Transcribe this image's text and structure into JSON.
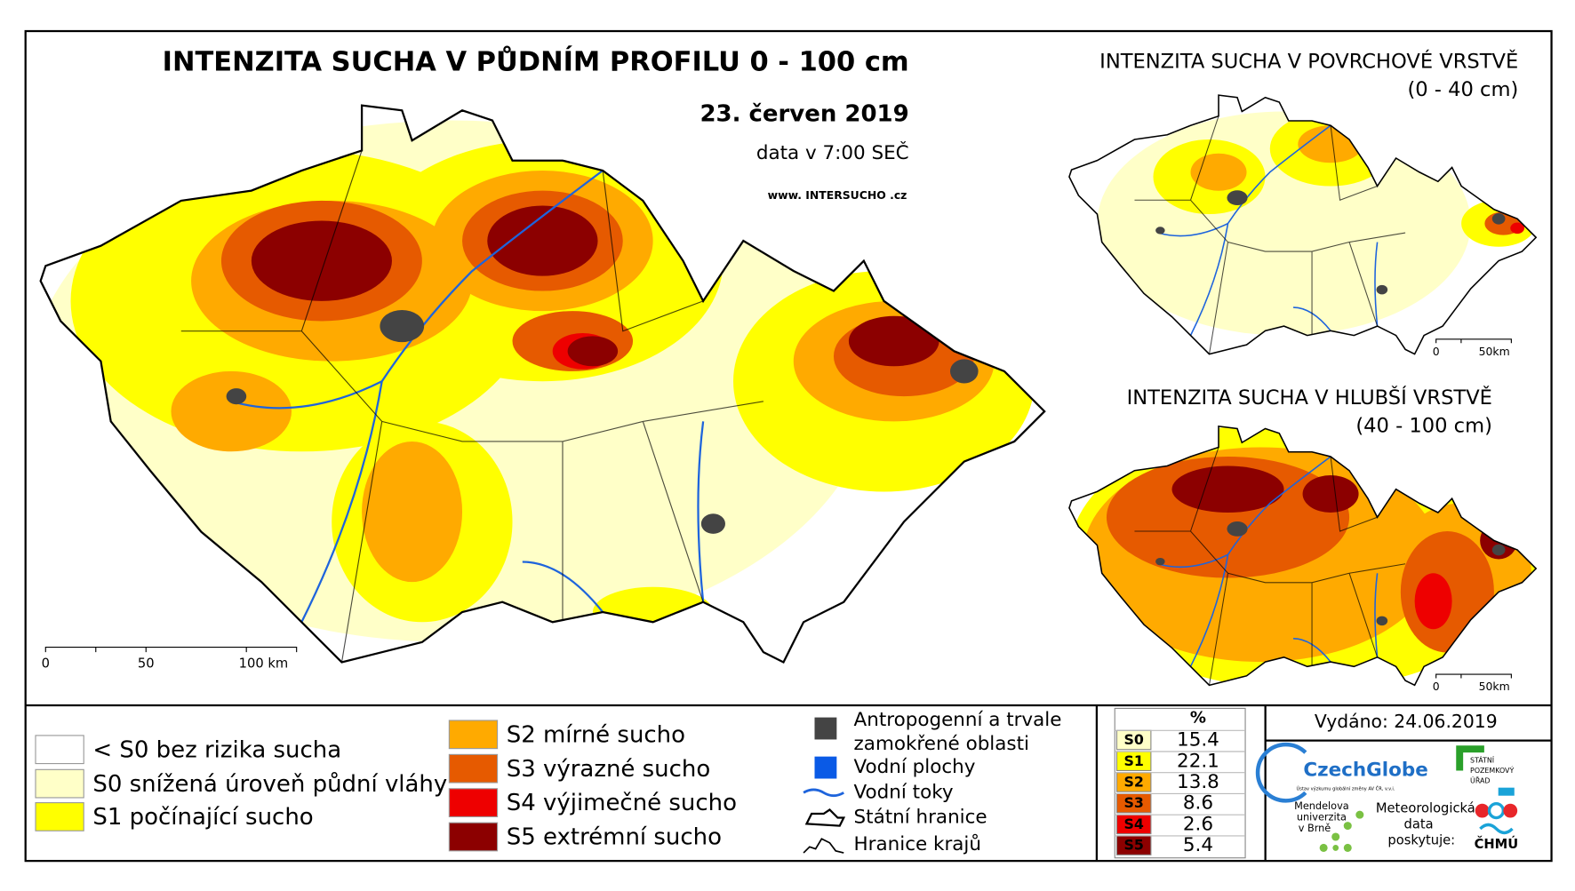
{
  "main_map": {
    "title": "INTENZITA SUCHA V PŮDNÍM PROFILU 0 - 100 cm",
    "date": "23. červen 2019",
    "data_time": "data v 7:00 SEČ",
    "website": "www. INTERSUCHO .cz",
    "scale": [
      "0",
      "50",
      "100 km"
    ]
  },
  "inset_top": {
    "title": "INTENZITA SUCHA V POVRCHOVÉ VRSTVĚ",
    "subtitle": "(0 - 40 cm)",
    "scale": [
      "0",
      "50km"
    ]
  },
  "inset_bottom": {
    "title": "INTENZITA SUCHA V HLUBŠÍ VRSTVĚ",
    "subtitle": "(40 - 100 cm)",
    "scale": [
      "0",
      "50km"
    ]
  },
  "legend": {
    "categories": [
      {
        "label": "< S0 bez rizika sucha",
        "color": "#ffffff"
      },
      {
        "label": "S0 snížená úroveň půdní vláhy",
        "color": "#ffffc8"
      },
      {
        "label": "S1 počínající sucho",
        "color": "#ffff00"
      },
      {
        "label": "S2 mírné sucho",
        "color": "#ffaa00"
      },
      {
        "label": "S3 výrazné sucho",
        "color": "#e65a00"
      },
      {
        "label": "S4 výjimečné sucho",
        "color": "#ee0000"
      },
      {
        "label": "S5 extrémní sucho",
        "color": "#8c0000"
      }
    ],
    "features": [
      {
        "lines": [
          "Antropogenní a trvale",
          "zamokřené oblasti"
        ],
        "color": "#444444"
      },
      {
        "lines": [
          "Vodní plochy"
        ],
        "color": "#0a5ae6"
      },
      {
        "lines": [
          "Vodní toky"
        ],
        "color": "#1e64dc"
      },
      {
        "lines": [
          "Státní hranice"
        ],
        "color": "#000000"
      },
      {
        "lines": [
          "Hranice krajů"
        ],
        "color": "#000000"
      }
    ]
  },
  "stats_table": {
    "header": "%",
    "rows": [
      [
        "S0",
        15.4
      ],
      [
        "S1",
        22.1
      ],
      [
        "S2",
        13.8
      ],
      [
        "S3",
        8.6
      ],
      [
        "S4",
        2.6
      ],
      [
        "S5",
        5.4
      ]
    ]
  },
  "issued": "Vydáno: 24.06.2019",
  "logos": {
    "czechglobe": "CzechGlobe",
    "czechglobe_sub": "Ústav výzkumu globální změny AV ČR, v.v.i.",
    "spu": [
      "STÁTNÍ",
      "POZEMKOVÝ",
      "ÚŘAD"
    ],
    "mendelu": [
      "Mendelova",
      "univerzita",
      "v Brně"
    ],
    "chmu_text": [
      "Meteorologická",
      "data",
      "poskytuje:"
    ],
    "chmu": "ČHMÚ"
  }
}
